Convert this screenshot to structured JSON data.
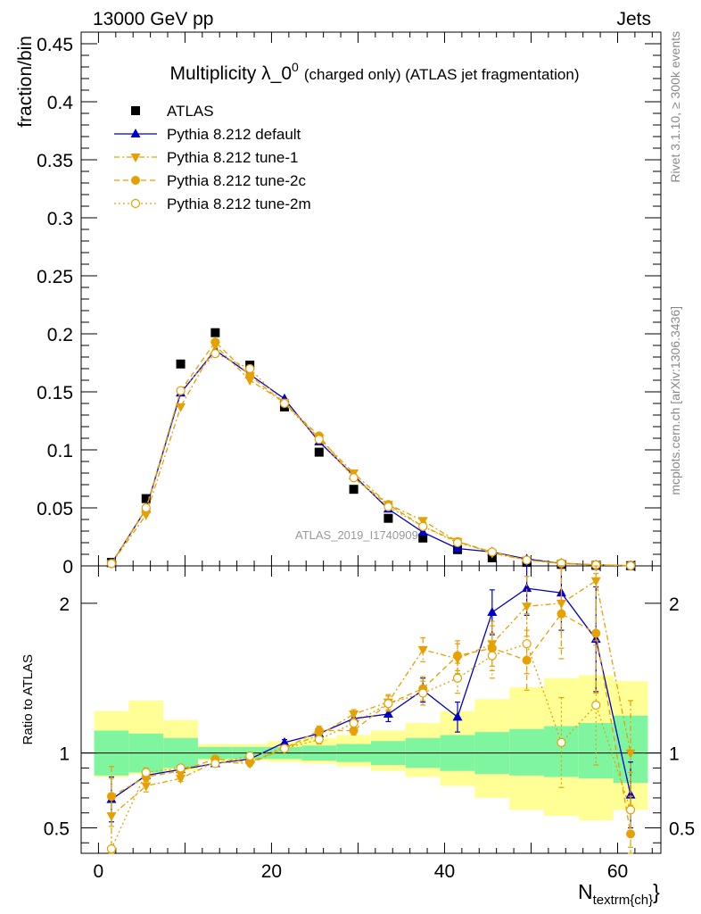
{
  "header": {
    "left": "13000 GeV pp",
    "right": "Jets"
  },
  "side_labels": {
    "rivet": "Rivet 3.1.10, ≥ 300k events",
    "mcplots": "mcplots.cern.ch [arXiv:1306.3436]"
  },
  "watermark": "ATLAS_2019_I1740909",
  "colors": {
    "atlas": "#000000",
    "default": "#0000cc",
    "tunes": "#e6a000",
    "band_green": "#80f5a0",
    "band_yellow": "#ffff96"
  },
  "chart_data": [
    {
      "type": "scatter",
      "title": "Multiplicity λ_0",
      "title_sup": "0",
      "title_suffix": "(charged only) (ATLAS jet fragmentation)",
      "ylabel": "fraction/bin",
      "xlim": [
        -2,
        65
      ],
      "ylim": [
        0,
        0.46
      ],
      "yticks": [
        0,
        0.05,
        0.1,
        0.15,
        0.2,
        0.25,
        0.3,
        0.35,
        0.4,
        0.45
      ],
      "ytick_labels": [
        "0",
        "0.05",
        "0.1",
        "0.15",
        "0.2",
        "0.25",
        "0.3",
        "0.35",
        "0.4",
        "0.45"
      ],
      "x": [
        1.5,
        5.5,
        9.5,
        13.5,
        17.5,
        21.5,
        25.5,
        29.5,
        33.5,
        37.5,
        41.5,
        45.5,
        49.5,
        53.5,
        57.5,
        61.5
      ],
      "series": [
        {
          "name": "ATLAS",
          "marker": "square",
          "values": [
            0.003,
            0.058,
            0.174,
            0.201,
            0.173,
            0.137,
            0.098,
            0.066,
            0.041,
            0.024,
            0.014,
            0.007,
            0.003,
            0.0013,
            0.0005,
            0.0002
          ]
        },
        {
          "name": "Pythia 8.212 default",
          "marker": "triangle-up",
          "values": [
            0.002,
            0.049,
            0.149,
            0.186,
            0.165,
            0.144,
            0.107,
            0.078,
            0.049,
            0.029,
            0.015,
            0.012,
            0.006,
            0.0022,
            0.0008,
            0.0002
          ]
        },
        {
          "name": "Pythia 8.212 tune-1",
          "marker": "triangle-down",
          "values": [
            0.002,
            0.044,
            0.137,
            0.19,
            0.16,
            0.141,
            0.11,
            0.08,
            0.053,
            0.039,
            0.021,
            0.011,
            0.005,
            0.002,
            0.001,
            0.0002
          ]
        },
        {
          "name": "Pythia 8.212 tune-2c",
          "marker": "circle",
          "values": [
            0.002,
            0.049,
            0.151,
            0.193,
            0.164,
            0.14,
            0.112,
            0.076,
            0.053,
            0.034,
            0.021,
            0.012,
            0.005,
            0.0025,
            0.0009,
            0.0002
          ]
        },
        {
          "name": "Pythia 8.212 tune-2m",
          "marker": "open-circle",
          "values": [
            0.002,
            0.05,
            0.151,
            0.183,
            0.17,
            0.14,
            0.109,
            0.076,
            0.051,
            0.034,
            0.02,
            0.012,
            0.005,
            0.0022,
            0.0008,
            0.0002
          ]
        }
      ]
    },
    {
      "type": "scatter",
      "ylabel": "Ratio to ATLAS",
      "xlabel": "N",
      "xlabel_sub": "textrm{ch}",
      "xlim": [
        -2,
        65
      ],
      "ylim": [
        0.33,
        2.25
      ],
      "yticks": [
        0.5,
        1,
        2
      ],
      "ytick_labels": [
        "0.5",
        "1",
        "2"
      ],
      "xticks": [
        0,
        20,
        40,
        60
      ],
      "xtick_labels": [
        "0",
        "20",
        "40",
        "60"
      ],
      "x": [
        1.5,
        5.5,
        9.5,
        13.5,
        17.5,
        21.5,
        25.5,
        29.5,
        33.5,
        37.5,
        41.5,
        45.5,
        49.5,
        53.5,
        57.5,
        61.5
      ],
      "bins": [
        [
          -0.5,
          3.5
        ],
        [
          3.5,
          7.5
        ],
        [
          7.5,
          11.5
        ],
        [
          11.5,
          15.5
        ],
        [
          15.5,
          19.5
        ],
        [
          19.5,
          23.5
        ],
        [
          23.5,
          27.5
        ],
        [
          27.5,
          31.5
        ],
        [
          31.5,
          35.5
        ],
        [
          35.5,
          39.5
        ],
        [
          39.5,
          43.5
        ],
        [
          43.5,
          47.5
        ],
        [
          47.5,
          51.5
        ],
        [
          51.5,
          55.5
        ],
        [
          55.5,
          59.5
        ],
        [
          59.5,
          63.5
        ]
      ],
      "band_green": [
        [
          0.85,
          1.15
        ],
        [
          0.87,
          1.13
        ],
        [
          0.9,
          1.1
        ],
        [
          0.96,
          1.04
        ],
        [
          0.96,
          1.04
        ],
        [
          0.96,
          1.04
        ],
        [
          0.95,
          1.05
        ],
        [
          0.94,
          1.06
        ],
        [
          0.92,
          1.08
        ],
        [
          0.9,
          1.1
        ],
        [
          0.88,
          1.12
        ],
        [
          0.86,
          1.14
        ],
        [
          0.85,
          1.16
        ],
        [
          0.84,
          1.18
        ],
        [
          0.83,
          1.2
        ],
        [
          0.8,
          1.25
        ]
      ],
      "band_yellow": [
        [
          0.84,
          1.28
        ],
        [
          0.86,
          1.35
        ],
        [
          0.88,
          1.22
        ],
        [
          0.95,
          1.06
        ],
        [
          0.95,
          1.06
        ],
        [
          0.94,
          1.08
        ],
        [
          0.93,
          1.1
        ],
        [
          0.91,
          1.12
        ],
        [
          0.88,
          1.15
        ],
        [
          0.84,
          1.2
        ],
        [
          0.78,
          1.28
        ],
        [
          0.7,
          1.36
        ],
        [
          0.62,
          1.44
        ],
        [
          0.58,
          1.5
        ],
        [
          0.55,
          1.52
        ],
        [
          0.62,
          1.48
        ]
      ],
      "series": [
        {
          "name": "Pythia 8.212 default",
          "marker": "triangle-up",
          "values": [
            0.69,
            0.85,
            0.89,
            0.93,
            0.96,
            1.07,
            1.13,
            1.23,
            1.26,
            1.42,
            1.24,
            1.94,
            2.1,
            2.07,
            1.76,
            0.72
          ],
          "err": [
            0.15,
            0.03,
            0.02,
            0.02,
            0.02,
            0.02,
            0.03,
            0.03,
            0.05,
            0.08,
            0.1,
            0.15,
            0.18,
            0.25,
            0.35,
            0.22
          ]
        },
        {
          "name": "Pythia 8.212 tune-1",
          "marker": "triangle-down",
          "values": [
            0.58,
            0.78,
            0.83,
            0.94,
            0.93,
            1.03,
            1.12,
            1.26,
            1.34,
            1.69,
            1.63,
            1.73,
            1.98,
            2.0,
            2.15,
            1.0
          ],
          "err": [
            0.25,
            0.04,
            0.02,
            0.02,
            0.02,
            0.02,
            0.03,
            0.03,
            0.05,
            0.08,
            0.1,
            0.15,
            0.2,
            0.3,
            0.4,
            0.35
          ]
        },
        {
          "name": "Pythia 8.212 tune-2c",
          "marker": "circle",
          "values": [
            0.71,
            0.84,
            0.88,
            0.96,
            0.94,
            1.03,
            1.15,
            1.15,
            1.33,
            1.43,
            1.65,
            1.7,
            1.62,
            1.93,
            1.8,
            0.46
          ],
          "err": [
            0.2,
            0.03,
            0.02,
            0.02,
            0.02,
            0.02,
            0.03,
            0.03,
            0.05,
            0.08,
            0.1,
            0.15,
            0.2,
            0.3,
            0.4,
            0.25
          ]
        },
        {
          "name": "Pythia 8.212 tune-2m",
          "marker": "open-circle",
          "values": [
            0.36,
            0.87,
            0.9,
            0.93,
            0.98,
            1.03,
            1.09,
            1.2,
            1.33,
            1.4,
            1.5,
            1.65,
            1.73,
            1.07,
            1.32,
            0.62
          ],
          "err": [
            0.35,
            0.03,
            0.02,
            0.02,
            0.02,
            0.02,
            0.03,
            0.03,
            0.05,
            0.08,
            0.1,
            0.15,
            0.2,
            0.3,
            0.4,
            0.25
          ]
        }
      ]
    }
  ]
}
